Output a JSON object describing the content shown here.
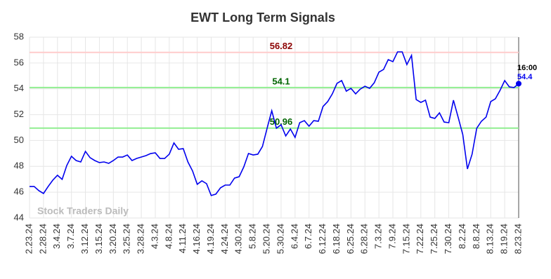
{
  "chart_data": {
    "type": "line",
    "title": "EWT Long Term Signals",
    "watermark": "Stock Traders Daily",
    "categories": [
      "2.23.24",
      null,
      null,
      "2.28.24",
      null,
      null,
      "3.4.24",
      null,
      null,
      "3.7.24",
      null,
      null,
      "3.12.24",
      null,
      null,
      "3.15.24",
      null,
      null,
      "3.20.24",
      null,
      null,
      "3.25.24",
      null,
      null,
      "3.28.24",
      null,
      null,
      "4.3.24",
      null,
      null,
      "4.8.24",
      null,
      null,
      "4.11.24",
      null,
      null,
      "4.16.24",
      null,
      null,
      "4.19.24",
      null,
      null,
      "4.24.24",
      null,
      null,
      "4.30.24",
      null,
      null,
      "5.8.24",
      null,
      null,
      "5.20.24",
      null,
      null,
      "5.30.24",
      null,
      null,
      "6.4.24",
      null,
      null,
      "6.7.24",
      null,
      null,
      "6.12.24",
      null,
      null,
      "6.18.24",
      null,
      null,
      "6.25.24",
      null,
      null,
      "6.28.24",
      null,
      null,
      "7.3.24",
      null,
      null,
      "7.9.24",
      null,
      null,
      "7.15.24",
      null,
      null,
      "7.22.24",
      null,
      null,
      "7.25.24",
      null,
      null,
      "7.30.24",
      null,
      null,
      "8.2.24",
      null,
      null,
      "8.8.24",
      null,
      null,
      "8.13.24",
      null,
      null,
      "8.19.24",
      null,
      null,
      "8.23.24"
    ],
    "values": [
      46.44,
      46.44,
      46.12,
      45.9,
      46.44,
      46.93,
      47.31,
      46.99,
      48.07,
      48.78,
      48.45,
      48.34,
      49.16,
      48.67,
      48.45,
      48.29,
      48.34,
      48.23,
      48.45,
      48.72,
      48.72,
      48.88,
      48.45,
      48.61,
      48.72,
      48.83,
      48.99,
      49.05,
      48.61,
      48.61,
      48.94,
      49.81,
      49.32,
      49.37,
      48.34,
      47.64,
      46.61,
      46.88,
      46.66,
      45.74,
      45.85,
      46.34,
      46.55,
      46.55,
      47.09,
      47.2,
      47.96,
      48.99,
      48.88,
      48.94,
      49.54,
      50.95,
      52.3,
      50.95,
      51.22,
      50.35,
      50.89,
      50.24,
      51.38,
      51.54,
      51.11,
      51.54,
      51.49,
      52.63,
      53.01,
      53.61,
      54.42,
      54.64,
      53.82,
      54.04,
      53.61,
      53.98,
      54.2,
      54.04,
      54.47,
      55.29,
      55.5,
      56.26,
      56.1,
      56.86,
      56.86,
      55.88,
      56.59,
      53.17,
      52.95,
      53.12,
      51.81,
      51.71,
      52.14,
      51.43,
      51.38,
      53.12,
      51.81,
      50.46,
      47.8,
      48.94,
      50.95,
      51.49,
      51.81,
      53.01,
      53.23,
      53.88,
      54.64,
      54.15,
      54.1,
      54.4
    ],
    "color": "#0000ee",
    "last_time": "16:00",
    "reference_lines": [
      {
        "value": 56.82,
        "color": "#ffcccc",
        "label_color": "#8b0000"
      },
      {
        "value": 54.1,
        "color": "#90ee90",
        "label_color": "#006400"
      },
      {
        "value": 50.96,
        "color": "#90ee90",
        "label_color": "#006400"
      }
    ],
    "ylim": [
      44,
      58
    ],
    "yticks": [
      44,
      46,
      48,
      50,
      52,
      54,
      56,
      58
    ],
    "grid": true
  }
}
